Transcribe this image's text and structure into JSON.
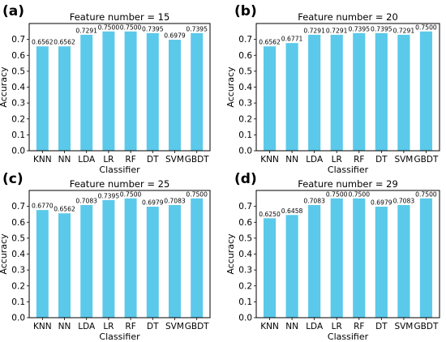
{
  "chart_data": [
    {
      "panel": "(a)",
      "type": "bar",
      "title": "Feature number = 15",
      "xlabel": "Classifier",
      "ylabel": "Accuracy",
      "categories": [
        "KNN",
        "NN",
        "LDA",
        "LR",
        "RF",
        "DT",
        "SVM",
        "GBDT"
      ],
      "values": [
        0.6562,
        0.6562,
        0.7291,
        0.75,
        0.75,
        0.7395,
        0.6979,
        0.7395
      ],
      "labels": [
        "0.6562",
        "0.6562",
        "0.7291",
        "0.7500",
        "0.7500",
        "0.7395",
        "0.6979",
        "0.7395"
      ],
      "ylim": [
        0,
        0.8
      ],
      "yticks": [
        "0.0",
        "0.1",
        "0.2",
        "0.3",
        "0.4",
        "0.5",
        "0.6",
        "0.7"
      ],
      "grid": false,
      "bar_color": "#5bc9ea"
    },
    {
      "panel": "(b)",
      "type": "bar",
      "title": "Feature number = 20",
      "xlabel": "Classifier",
      "ylabel": "Accuracy",
      "categories": [
        "KNN",
        "NN",
        "LDA",
        "LR",
        "RF",
        "DT",
        "SVM",
        "GBDT"
      ],
      "values": [
        0.6562,
        0.6771,
        0.7291,
        0.7291,
        0.7395,
        0.7395,
        0.7291,
        0.75
      ],
      "labels": [
        "0.6562",
        "0.6771",
        "0.7291",
        "0.7291",
        "0.7395",
        "0.7395",
        "0.7291",
        "0.7500"
      ],
      "ylim": [
        0,
        0.8
      ],
      "yticks": [
        "0.0",
        "0.1",
        "0.2",
        "0.3",
        "0.4",
        "0.5",
        "0.6",
        "0.7"
      ],
      "grid": false,
      "bar_color": "#5bc9ea"
    },
    {
      "panel": "(c)",
      "type": "bar",
      "title": "Feature number = 25",
      "xlabel": "Classifier",
      "ylabel": "Accuracy",
      "categories": [
        "KNN",
        "NN",
        "LDA",
        "LR",
        "RF",
        "DT",
        "SVM",
        "GBDT"
      ],
      "values": [
        0.677,
        0.6562,
        0.7083,
        0.7395,
        0.75,
        0.6979,
        0.7083,
        0.75
      ],
      "labels": [
        "0.6770",
        "0.6562",
        "0.7083",
        "0.7395",
        "0.7500",
        "0.6979",
        "0.7083",
        "0.7500"
      ],
      "ylim": [
        0,
        0.8
      ],
      "yticks": [
        "0.0",
        "0.1",
        "0.2",
        "0.3",
        "0.4",
        "0.5",
        "0.6",
        "0.7"
      ],
      "grid": false,
      "bar_color": "#5bc9ea"
    },
    {
      "panel": "(d)",
      "type": "bar",
      "title": "Feature number = 29",
      "xlabel": "Classifier",
      "ylabel": "Accuracy",
      "categories": [
        "KNN",
        "NN",
        "LDA",
        "LR",
        "RF",
        "DT",
        "SVM",
        "GBDT"
      ],
      "values": [
        0.625,
        0.6458,
        0.7083,
        0.75,
        0.75,
        0.6979,
        0.7083,
        0.75
      ],
      "labels": [
        "0.6250",
        "0.6458",
        "0.7083",
        "0.7500",
        "0.7500",
        "0.6979",
        "0.7083",
        "0.7500"
      ],
      "ylim": [
        0,
        0.8
      ],
      "yticks": [
        "0.0",
        "0.1",
        "0.2",
        "0.3",
        "0.4",
        "0.5",
        "0.6",
        "0.7"
      ],
      "grid": false,
      "bar_color": "#5bc9ea"
    }
  ]
}
